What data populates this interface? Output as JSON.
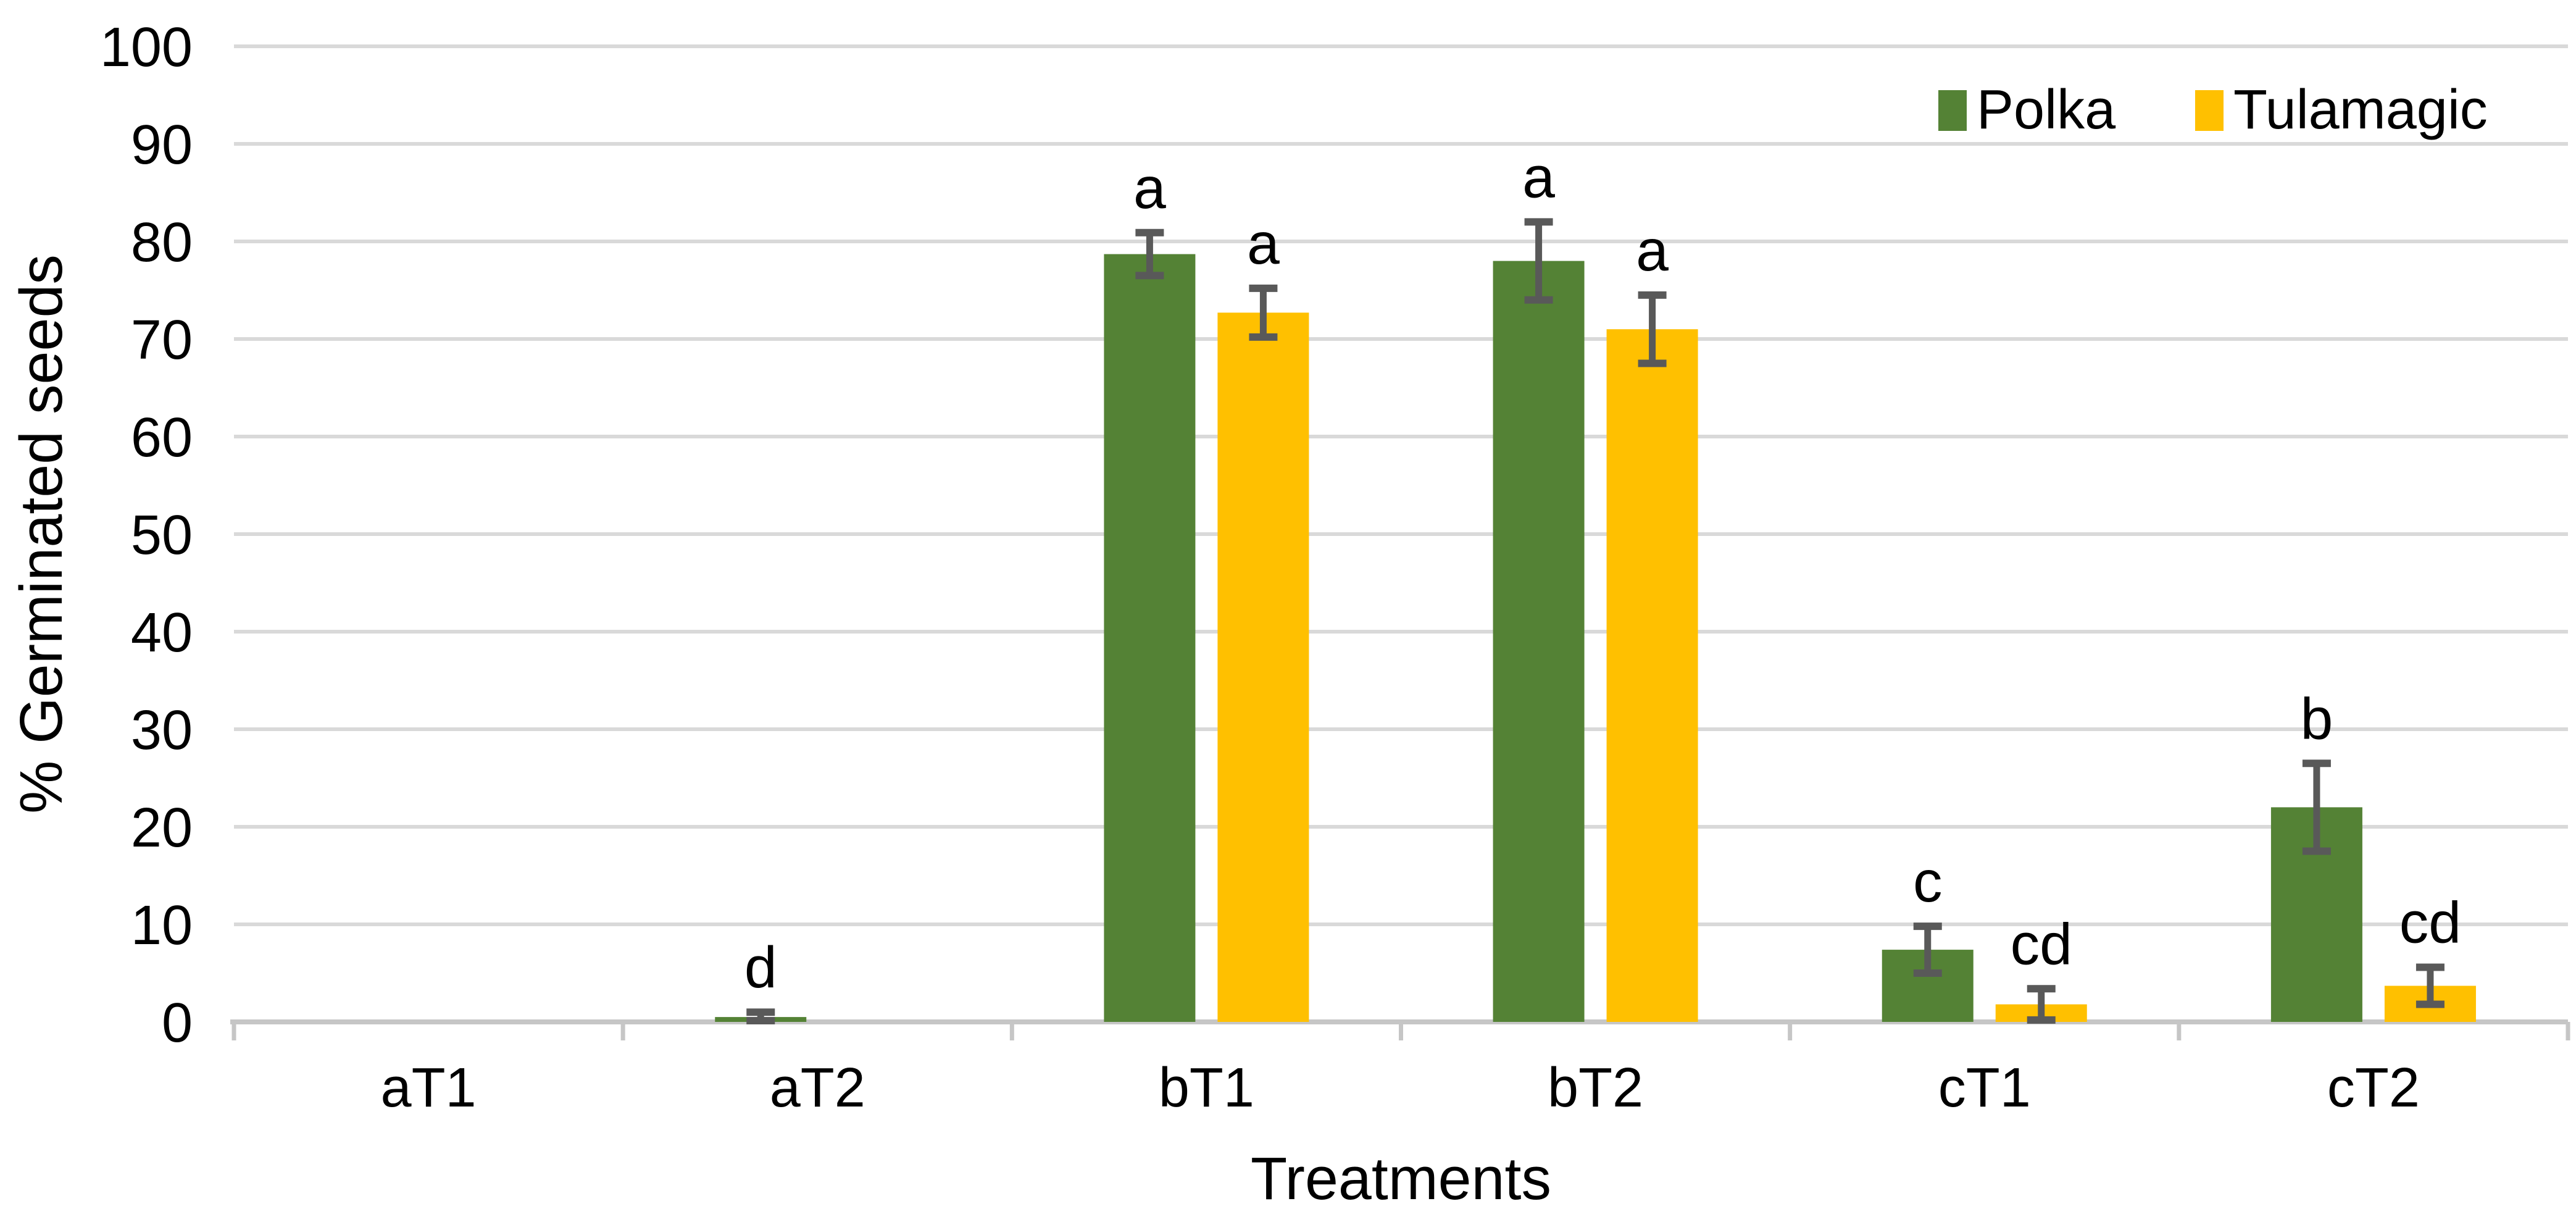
{
  "chart_data": {
    "type": "bar",
    "title": "",
    "xlabel": "Treatments",
    "ylabel": "% Germinated seeds",
    "ylim": [
      0,
      100
    ],
    "ytick_step": 10,
    "ytick_labels": [
      "0",
      "10",
      "20",
      "30",
      "40",
      "50",
      "60",
      "70",
      "80",
      "90",
      "100"
    ],
    "categories": [
      "aT1",
      "aT2",
      "bT1",
      "bT2",
      "cT1",
      "cT2"
    ],
    "grid": "horizontal-gridlines-on",
    "legend_position": "top-right-inside-plot",
    "series": [
      {
        "name": "Polka",
        "color": "#548235",
        "values": [
          0,
          0.5,
          78.7,
          78.0,
          7.4,
          22.0
        ],
        "errors": [
          0,
          0.5,
          2.2,
          4.0,
          2.4,
          4.5
        ],
        "sig_letters": [
          "",
          "d",
          "a",
          "a",
          "c",
          "b"
        ]
      },
      {
        "name": "Tulamagic",
        "color": "#FFC000",
        "values": [
          0,
          0,
          72.7,
          71.0,
          1.8,
          3.7
        ],
        "errors": [
          0,
          0,
          2.5,
          3.5,
          1.6,
          1.9
        ],
        "sig_letters": [
          "",
          "",
          "a",
          "a",
          "cd",
          "cd"
        ]
      }
    ],
    "error_bar_color": "#595959",
    "gridline_color": "#D9D9D9",
    "axis_line_color": "#C6C6C6",
    "text_color": "#000000",
    "background_color": "#FFFFFF"
  }
}
